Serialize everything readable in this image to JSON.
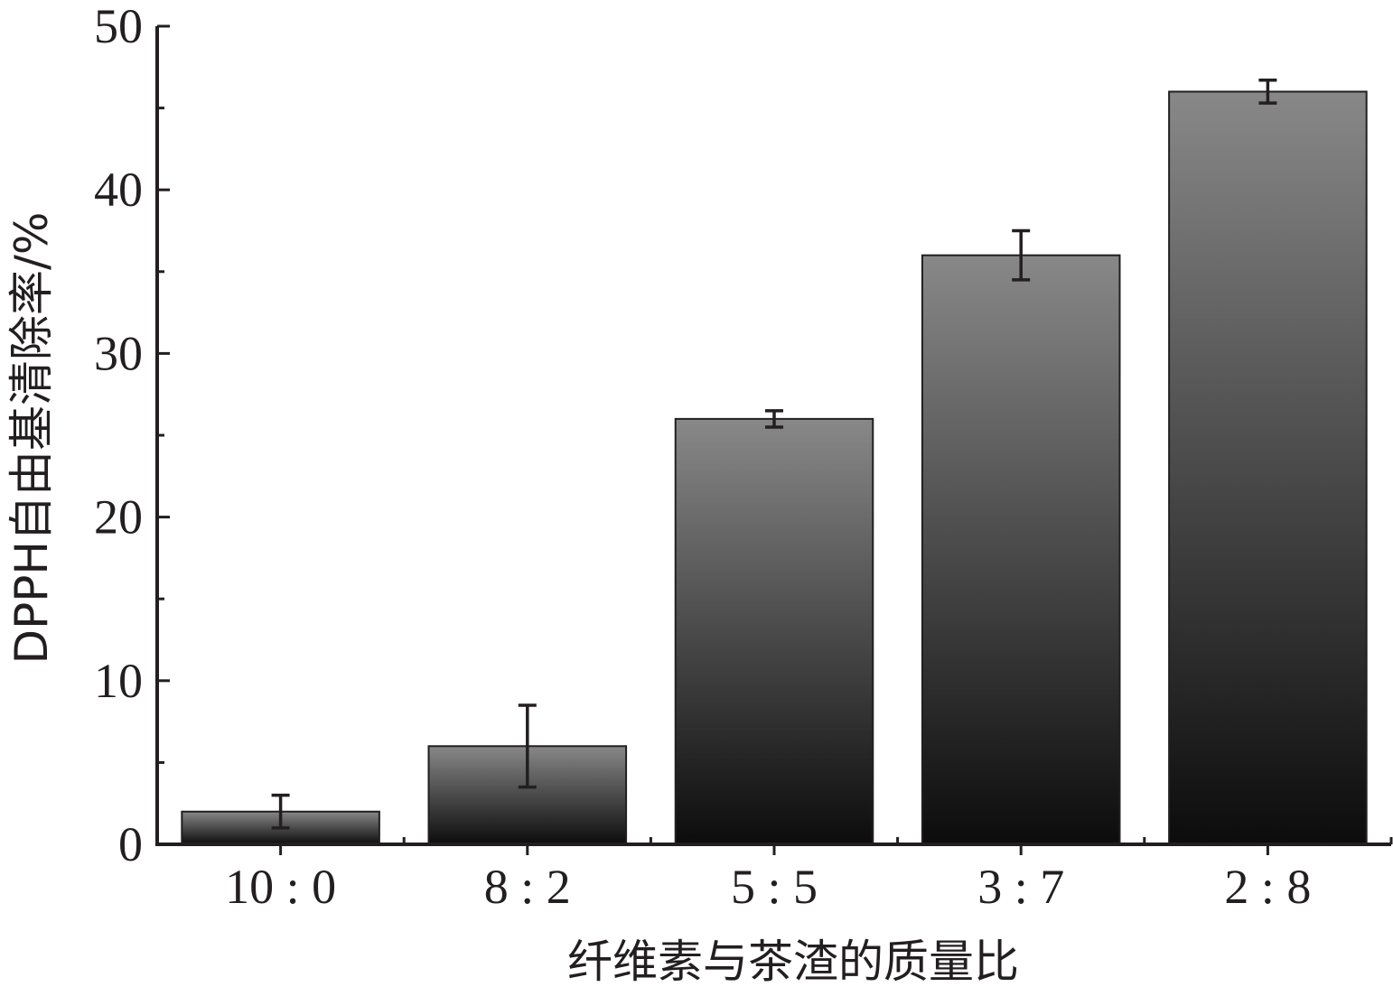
{
  "chart_data": {
    "type": "bar",
    "categories": [
      "10 : 0",
      "8 : 2",
      "5 : 5",
      "3 : 7",
      "2 : 8"
    ],
    "values": [
      2,
      6,
      26,
      36,
      46
    ],
    "errors": [
      1,
      2.5,
      0.5,
      1.5,
      0.7
    ],
    "ylabel": "DPPH自由基清除率/%",
    "xlabel": "纤维素与茶渣的质量比",
    "ylim": [
      0,
      50
    ],
    "yticks": [
      0,
      10,
      20,
      30,
      40,
      50
    ],
    "grid": false,
    "legend": "none",
    "colors": {
      "bar_top": "#888888",
      "bar_bottom": "#0c0c0c",
      "axis": "#231f20"
    }
  }
}
